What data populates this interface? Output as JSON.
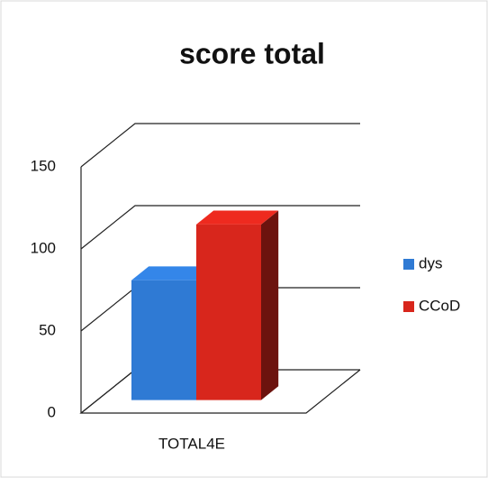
{
  "chart_data": {
    "type": "bar3d",
    "title": "score total",
    "categories": [
      "TOTAL4E"
    ],
    "series": [
      {
        "name": "dys",
        "color": "#2f7ad4",
        "values": [
          73
        ]
      },
      {
        "name": "CCoD",
        "color": "#d8261c",
        "values": [
          107
        ]
      }
    ],
    "ylim": [
      0,
      150
    ],
    "yticks": [
      0,
      50,
      100,
      150
    ],
    "grid": true,
    "legend": "right"
  }
}
